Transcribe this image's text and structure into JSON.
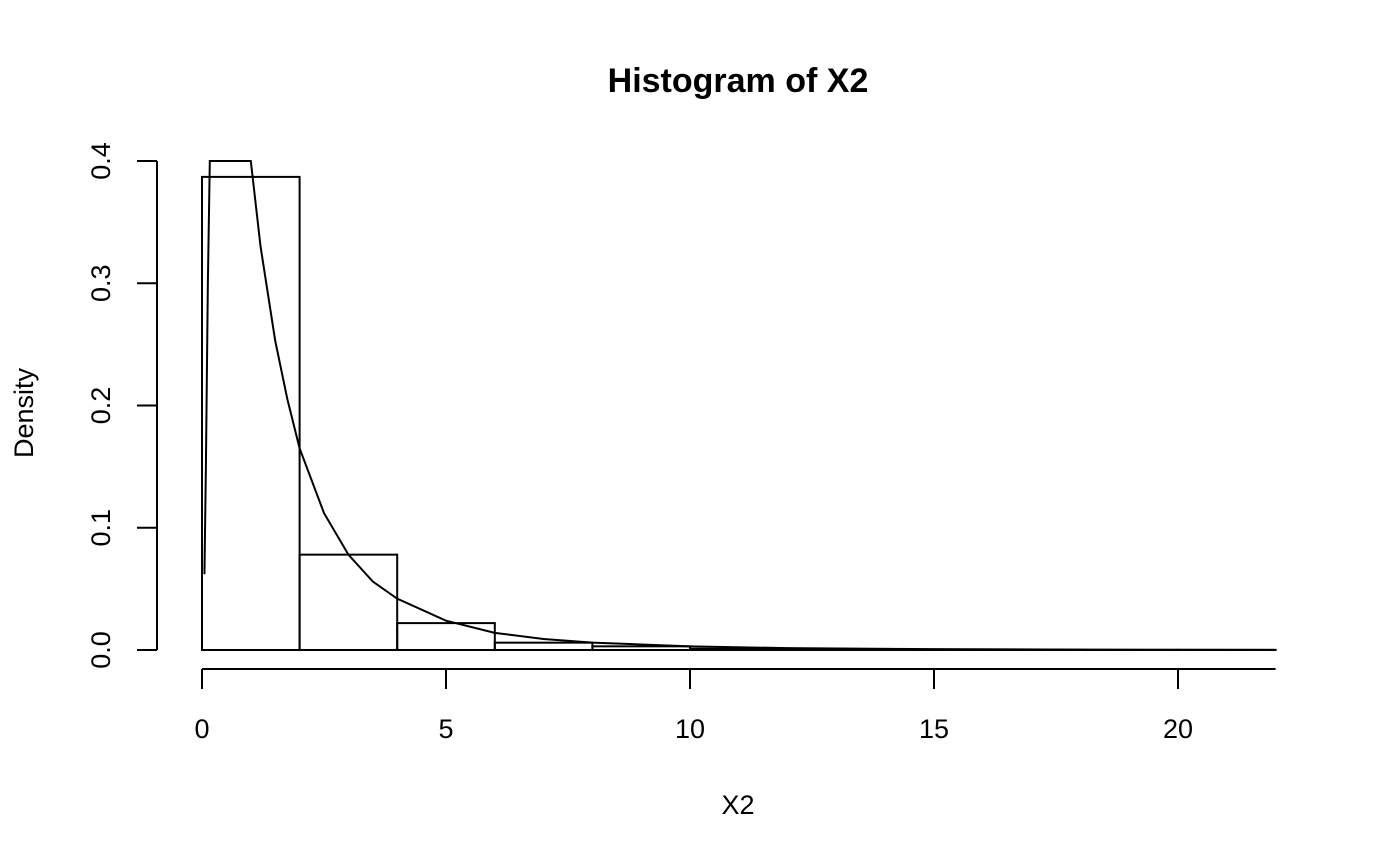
{
  "chart_data": {
    "type": "bar",
    "title": "Histogram of X2",
    "xlabel": "X2",
    "ylabel": "Density",
    "xlim": [
      0,
      22
    ],
    "ylim": [
      0,
      0.4
    ],
    "x_ticks": [
      0,
      5,
      10,
      15,
      20
    ],
    "x_tick_labels": [
      "0",
      "5",
      "10",
      "15",
      "20"
    ],
    "y_ticks": [
      0.0,
      0.1,
      0.2,
      0.3,
      0.4
    ],
    "y_tick_labels": [
      "0.0",
      "0.1",
      "0.2",
      "0.3",
      "0.4"
    ],
    "grid": false,
    "bins": [
      {
        "x0": 0,
        "x1": 2,
        "density": 0.387
      },
      {
        "x0": 2,
        "x1": 4,
        "density": 0.078
      },
      {
        "x0": 4,
        "x1": 6,
        "density": 0.022
      },
      {
        "x0": 6,
        "x1": 8,
        "density": 0.006
      },
      {
        "x0": 8,
        "x1": 10,
        "density": 0.003
      },
      {
        "x0": 10,
        "x1": 12,
        "density": 0.001
      },
      {
        "x0": 12,
        "x1": 14,
        "density": 0.0005
      },
      {
        "x0": 14,
        "x1": 16,
        "density": 0.0003
      },
      {
        "x0": 16,
        "x1": 18,
        "density": 0.0002
      },
      {
        "x0": 18,
        "x1": 20,
        "density": 0.0001
      },
      {
        "x0": 20,
        "x1": 22,
        "density": 0.0001
      }
    ],
    "series": [
      {
        "type": "line",
        "x": [
          0.05,
          0.08,
          0.12,
          0.16,
          1.0,
          1.2,
          1.5,
          1.75,
          2.0,
          2.5,
          3.0,
          3.5,
          4.0,
          5.0,
          6.0,
          7.0,
          8.0,
          10.0,
          12.0,
          15.0,
          18.0,
          22.0
        ],
        "y": [
          0.062,
          0.15,
          0.3,
          0.4,
          0.4,
          0.33,
          0.253,
          0.205,
          0.165,
          0.112,
          0.078,
          0.056,
          0.042,
          0.024,
          0.014,
          0.009,
          0.006,
          0.003,
          0.0015,
          0.0007,
          0.0003,
          0.0001
        ]
      }
    ]
  }
}
